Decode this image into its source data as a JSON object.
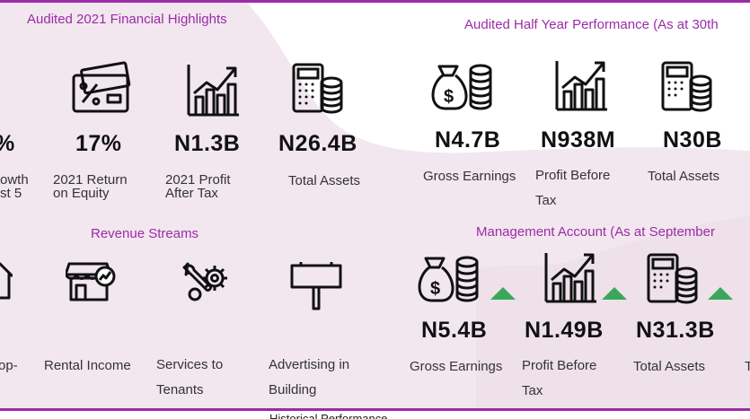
{
  "colors": {
    "accent": "#9c2ba8",
    "up": "#3aa85a",
    "ink": "#111111",
    "bg_shape": "#f1e6ee"
  },
  "sections": {
    "fin_highlights": "Audited 2021 Financial Highlights",
    "half_year": "Audited Half Year Performance (As at 30th",
    "revenue": "Revenue Streams",
    "management": "Management Account (As at September"
  },
  "highlights": {
    "growth": {
      "value": "%",
      "label_l1": "owth",
      "label_l2": "st 5"
    },
    "roe": {
      "value": "17%",
      "label_l1": "2021 Return",
      "label_l2": "on Equity"
    },
    "profit": {
      "value": "N1.3B",
      "label_l1": "2021 Profit",
      "label_l2": "After Tax"
    },
    "assets": {
      "value": "N26.4B",
      "label": "Total Assets"
    }
  },
  "half_year": {
    "gross": {
      "value": "N4.7B",
      "label": "Gross Earnings"
    },
    "pbt": {
      "value": "N938M",
      "label_l1": "Profit Before",
      "label_l2": "Tax"
    },
    "assets": {
      "value": "N30B",
      "label": "Total Assets"
    }
  },
  "revenue_items": {
    "prop": {
      "label": "op-"
    },
    "rental": {
      "label": "Rental Income"
    },
    "services": {
      "label_l1": "Services to",
      "label_l2": "Tenants"
    },
    "advertising": {
      "label_l1": "Advertising in",
      "label_l2": "Building"
    }
  },
  "management": {
    "gross": {
      "value": "N5.4B",
      "label": "Gross Earnings"
    },
    "pbt": {
      "value": "N1.49B",
      "label_l1": "Profit Before",
      "label_l2": "Tax"
    },
    "assets": {
      "value": "N31.3B",
      "label": "Total Assets"
    },
    "cut": {
      "label": "T"
    }
  },
  "icons": [
    "money-bag-coins-icon",
    "percent-card-icon",
    "growth-chart-icon",
    "calculator-coins-icon",
    "house-icon",
    "shop-icon",
    "gears-wrench-icon",
    "billboard-icon"
  ],
  "footer": "Historical Performance"
}
